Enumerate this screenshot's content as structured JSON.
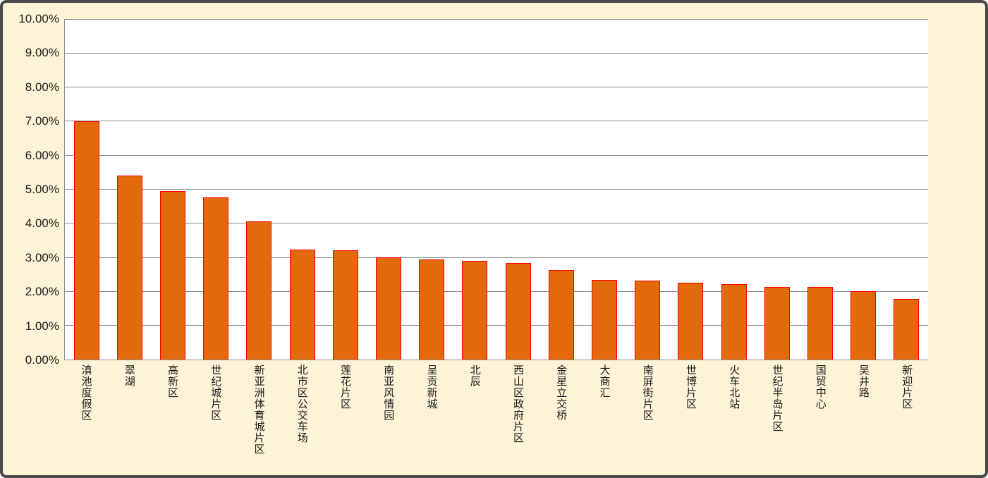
{
  "chart_data": {
    "type": "bar",
    "title": "",
    "xlabel": "",
    "ylabel": "",
    "categories": [
      "滇池度假区",
      "翠湖",
      "高新区",
      "世纪城片区",
      "新亚洲体育城片区",
      "北市区公交车场",
      "莲花片区",
      "南亚风情园",
      "呈贡新城",
      "北辰",
      "西山区政府片区",
      "金星立交桥",
      "大商汇",
      "南屏街片区",
      "世博片区",
      "火车北站",
      "世纪半岛片区",
      "国贸中心",
      "吴井路",
      "新迎片区"
    ],
    "values": [
      7.0,
      5.4,
      4.95,
      4.77,
      4.05,
      3.23,
      3.2,
      3.0,
      2.94,
      2.89,
      2.84,
      2.64,
      2.33,
      2.32,
      2.25,
      2.22,
      2.13,
      2.13,
      2.0,
      1.79
    ],
    "value_unit": "%",
    "ylim": [
      0,
      10
    ],
    "y_tick_step": 1,
    "y_tick_labels": [
      "0.00%",
      "1.00%",
      "2.00%",
      "3.00%",
      "4.00%",
      "5.00%",
      "6.00%",
      "7.00%",
      "8.00%",
      "9.00%",
      "10.00%"
    ],
    "grid": true,
    "legend": false,
    "colors": {
      "bar_fill": "#E2690C",
      "bar_border": "#FF0000",
      "chart_background": "#FDF4D8",
      "plot_background": "#FFFFFF",
      "gridline": "#8C8C8C",
      "frame_border": "#4A4A4A",
      "text": "#1A1A1A"
    }
  }
}
